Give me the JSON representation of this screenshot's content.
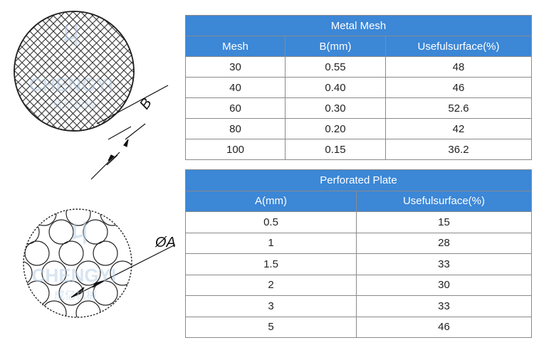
{
  "figures": {
    "mesh_dimension_label": "B",
    "plate_dimension_label": "ØA",
    "watermark": {
      "brand": "CHENGYI",
      "chinese": "成亿机械"
    }
  },
  "metal_mesh": {
    "title": "Metal Mesh",
    "headers": [
      "Mesh",
      "B(mm)",
      "Usefulsurface(%)"
    ],
    "rows": [
      [
        "30",
        "0.55",
        "48"
      ],
      [
        "40",
        "0.40",
        "46"
      ],
      [
        "60",
        "0.30",
        "52.6"
      ],
      [
        "80",
        "0.20",
        "42"
      ],
      [
        "100",
        "0.15",
        "36.2"
      ]
    ]
  },
  "perforated_plate": {
    "title": "Perforated Plate",
    "headers": [
      "A(mm)",
      "Usefulsurface(%)"
    ],
    "rows": [
      [
        "0.5",
        "15"
      ],
      [
        "1",
        "28"
      ],
      [
        "1.5",
        "33"
      ],
      [
        "2",
        "30"
      ],
      [
        "3",
        "33"
      ],
      [
        "5",
        "46"
      ]
    ]
  },
  "colors": {
    "header_bg": "#3c87d6",
    "header_text": "#ffffff",
    "border": "#8a8a8a",
    "watermark": "#b9cfe6"
  }
}
